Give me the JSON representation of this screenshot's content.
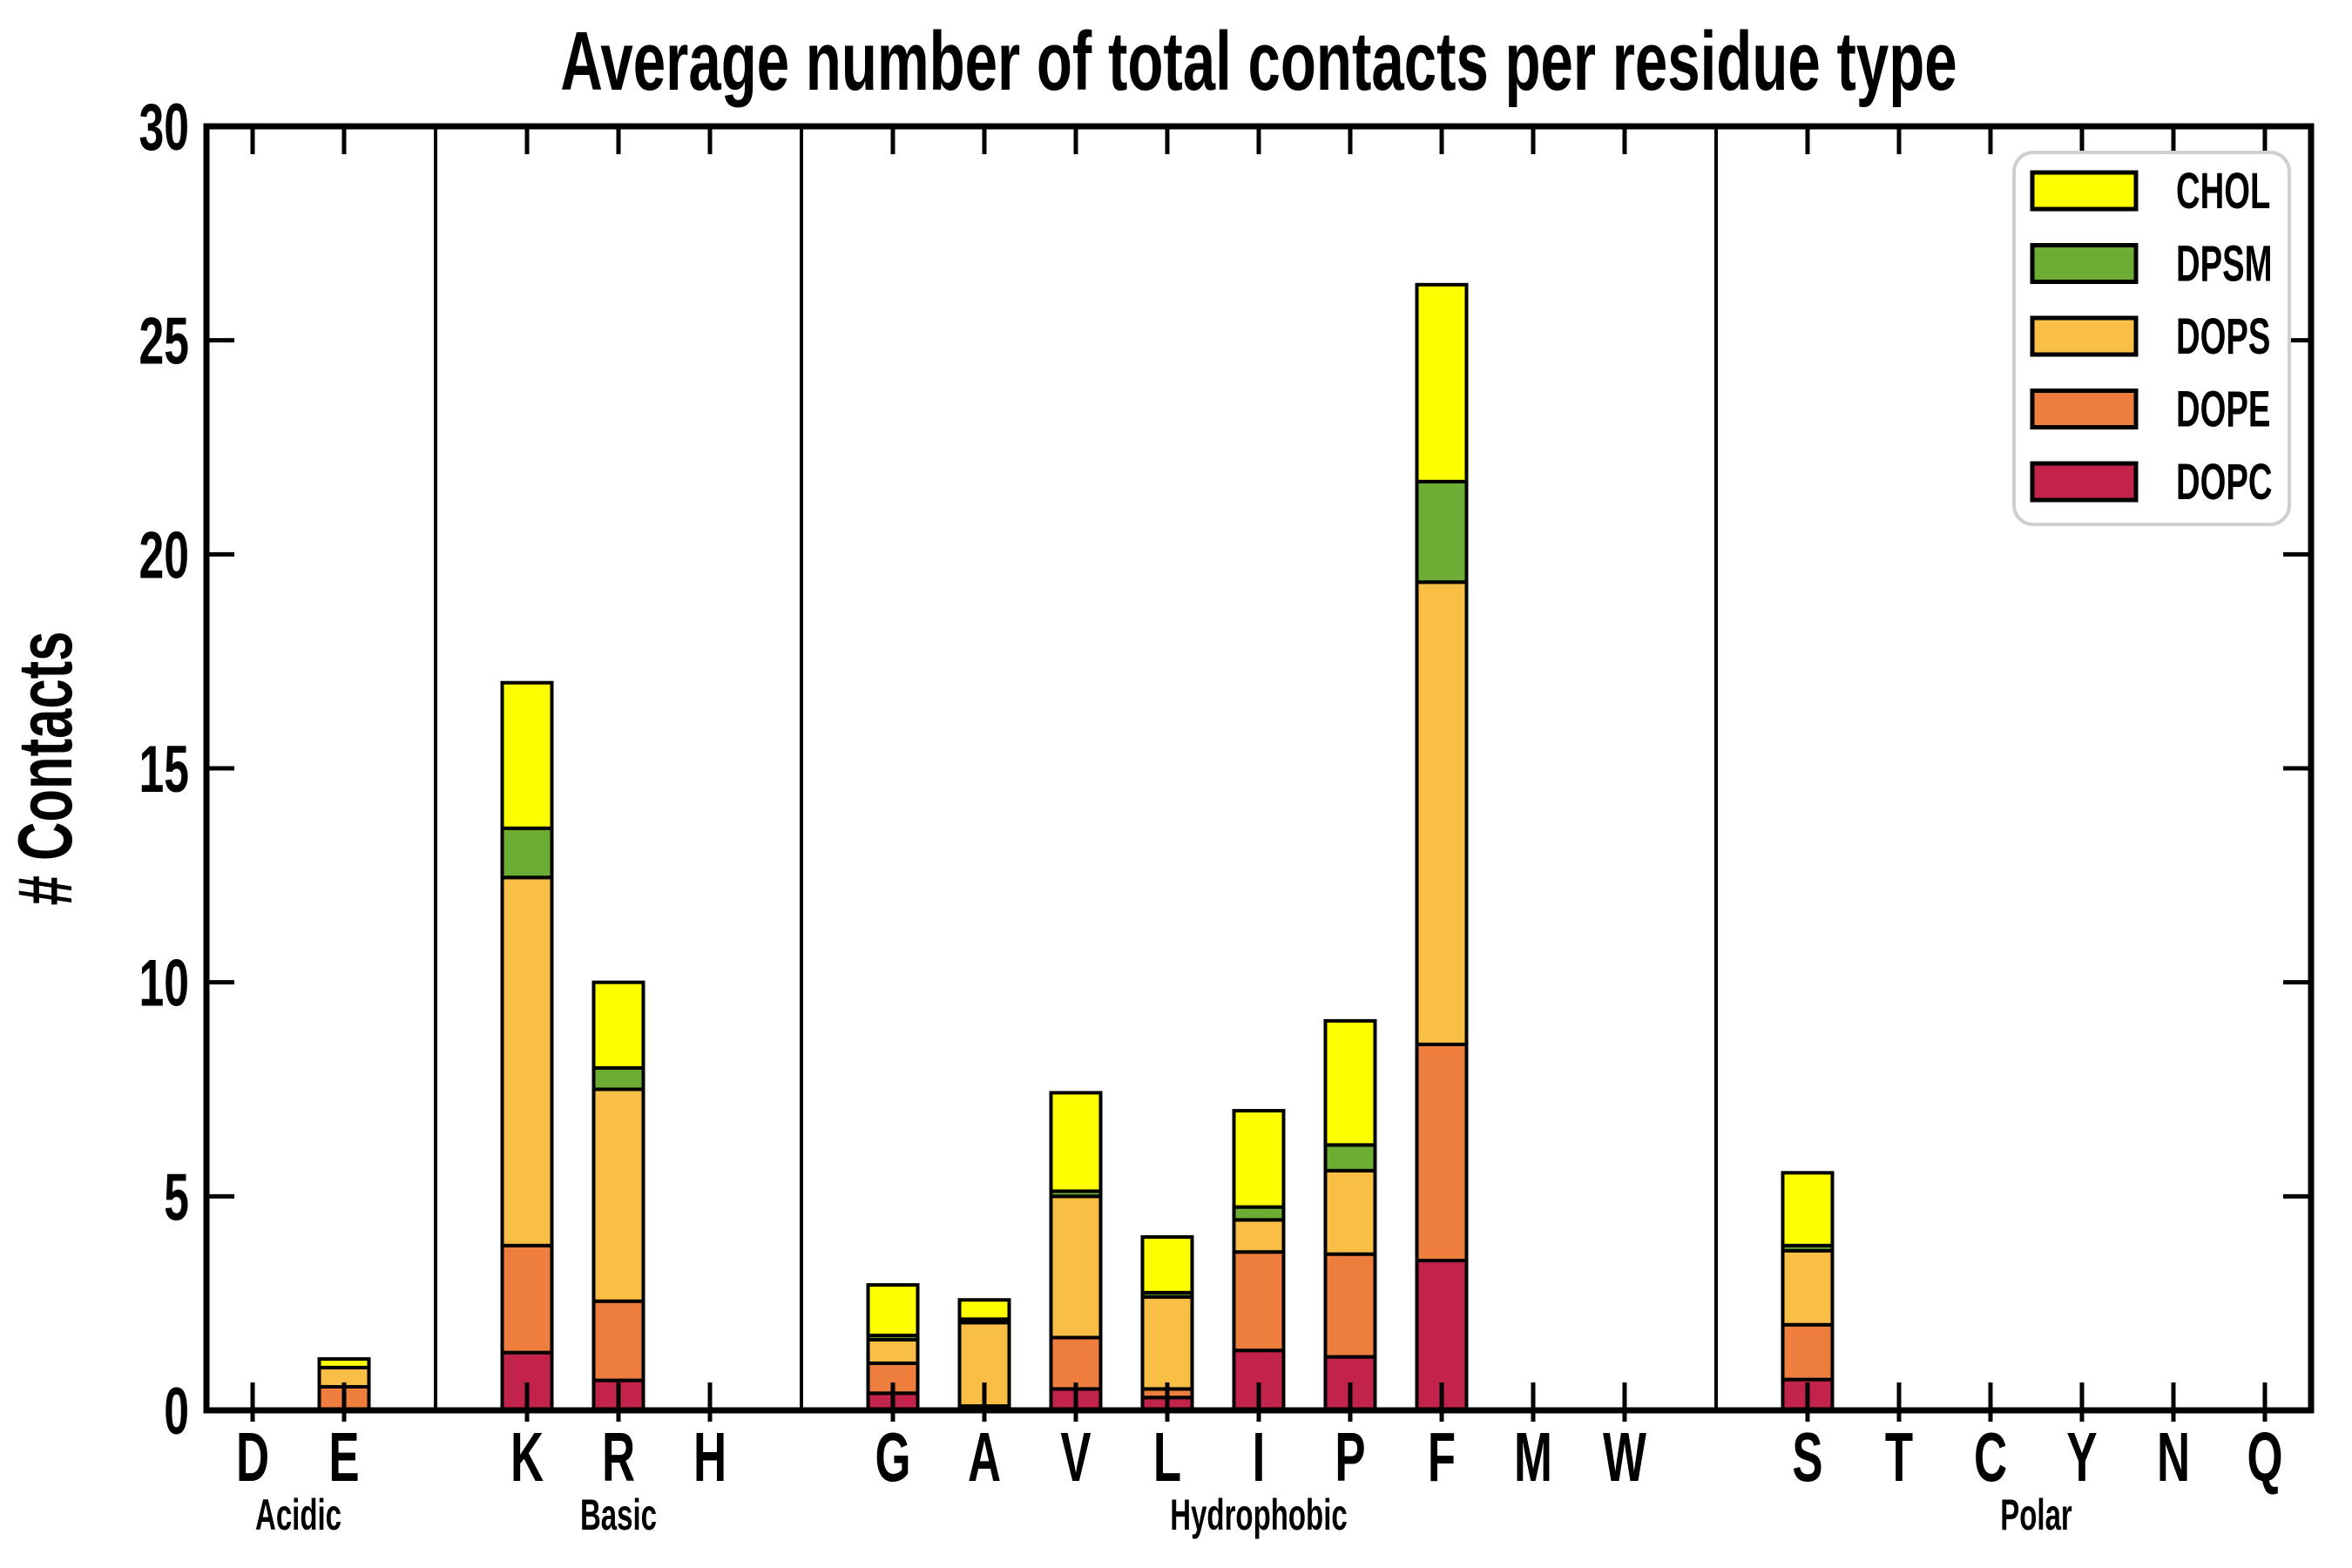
{
  "chart_data": {
    "type": "bar",
    "stacked": true,
    "title": "Average number of total contacts per residue type",
    "ylabel": "# Contacts",
    "ylim": [
      0,
      30
    ],
    "yticks": [
      0,
      5,
      10,
      15,
      20,
      25,
      30
    ],
    "grid": false,
    "legend_position": "upper right",
    "legend": [
      "CHOL",
      "DPSM",
      "DOPS",
      "DOPE",
      "DOPC"
    ],
    "groups": [
      {
        "label": "Acidic",
        "residues": [
          "D",
          "E"
        ]
      },
      {
        "label": "Basic",
        "residues": [
          "K",
          "R",
          "H"
        ]
      },
      {
        "label": "Hydrophobic",
        "residues": [
          "G",
          "A",
          "V",
          "L",
          "I",
          "P",
          "F",
          "M",
          "W"
        ]
      },
      {
        "label": "Polar",
        "residues": [
          "S",
          "T",
          "C",
          "Y",
          "N",
          "Q"
        ]
      }
    ],
    "categories": [
      "D",
      "E",
      "K",
      "R",
      "H",
      "G",
      "A",
      "V",
      "L",
      "I",
      "P",
      "F",
      "M",
      "W",
      "S",
      "T",
      "C",
      "Y",
      "N",
      "Q"
    ],
    "series": [
      {
        "name": "DOPC",
        "color": "#C2234B",
        "values": [
          0.01,
          0.0,
          1.35,
          0.7,
          0.01,
          0.4,
          0.05,
          0.5,
          0.3,
          1.4,
          1.25,
          3.5,
          0.01,
          0.01,
          0.72,
          0.01,
          0.01,
          0.01,
          0.01,
          0.01
        ]
      },
      {
        "name": "DOPE",
        "color": "#EE7E3D",
        "values": [
          0.01,
          0.55,
          2.5,
          1.85,
          0.01,
          0.7,
          0.05,
          1.2,
          0.2,
          2.3,
          2.4,
          5.05,
          0.01,
          0.01,
          1.28,
          0.01,
          0.01,
          0.01,
          0.01,
          0.01
        ]
      },
      {
        "name": "DOPS",
        "color": "#F8BE45",
        "values": [
          0.01,
          0.45,
          8.6,
          4.95,
          0.01,
          0.55,
          1.95,
          3.3,
          2.15,
          0.75,
          1.95,
          10.8,
          0.01,
          0.01,
          1.73,
          0.01,
          0.01,
          0.01,
          0.01,
          0.01
        ]
      },
      {
        "name": "DPSM",
        "color": "#6CAD33",
        "values": [
          0.0,
          0.0,
          1.15,
          0.5,
          0.0,
          0.1,
          0.08,
          0.12,
          0.1,
          0.3,
          0.6,
          2.35,
          0.0,
          0.0,
          0.12,
          0.0,
          0.0,
          0.0,
          0.0,
          0.0
        ]
      },
      {
        "name": "CHOL",
        "color": "#FDFF00",
        "values": [
          0.0,
          0.2,
          3.4,
          2.0,
          0.0,
          1.18,
          0.45,
          2.3,
          1.3,
          2.25,
          2.9,
          4.6,
          0.0,
          0.0,
          1.7,
          0.0,
          0.0,
          0.0,
          0.0,
          0.0
        ]
      }
    ],
    "colors": {
      "CHOL": "#FDFF00",
      "DPSM": "#6CAD33",
      "DOPS": "#F8BE45",
      "DOPE": "#EE7E3D",
      "DOPC": "#C2234B",
      "axis": "#000000",
      "legend_border": "#cfcfcf",
      "background": "#ffffff"
    }
  }
}
